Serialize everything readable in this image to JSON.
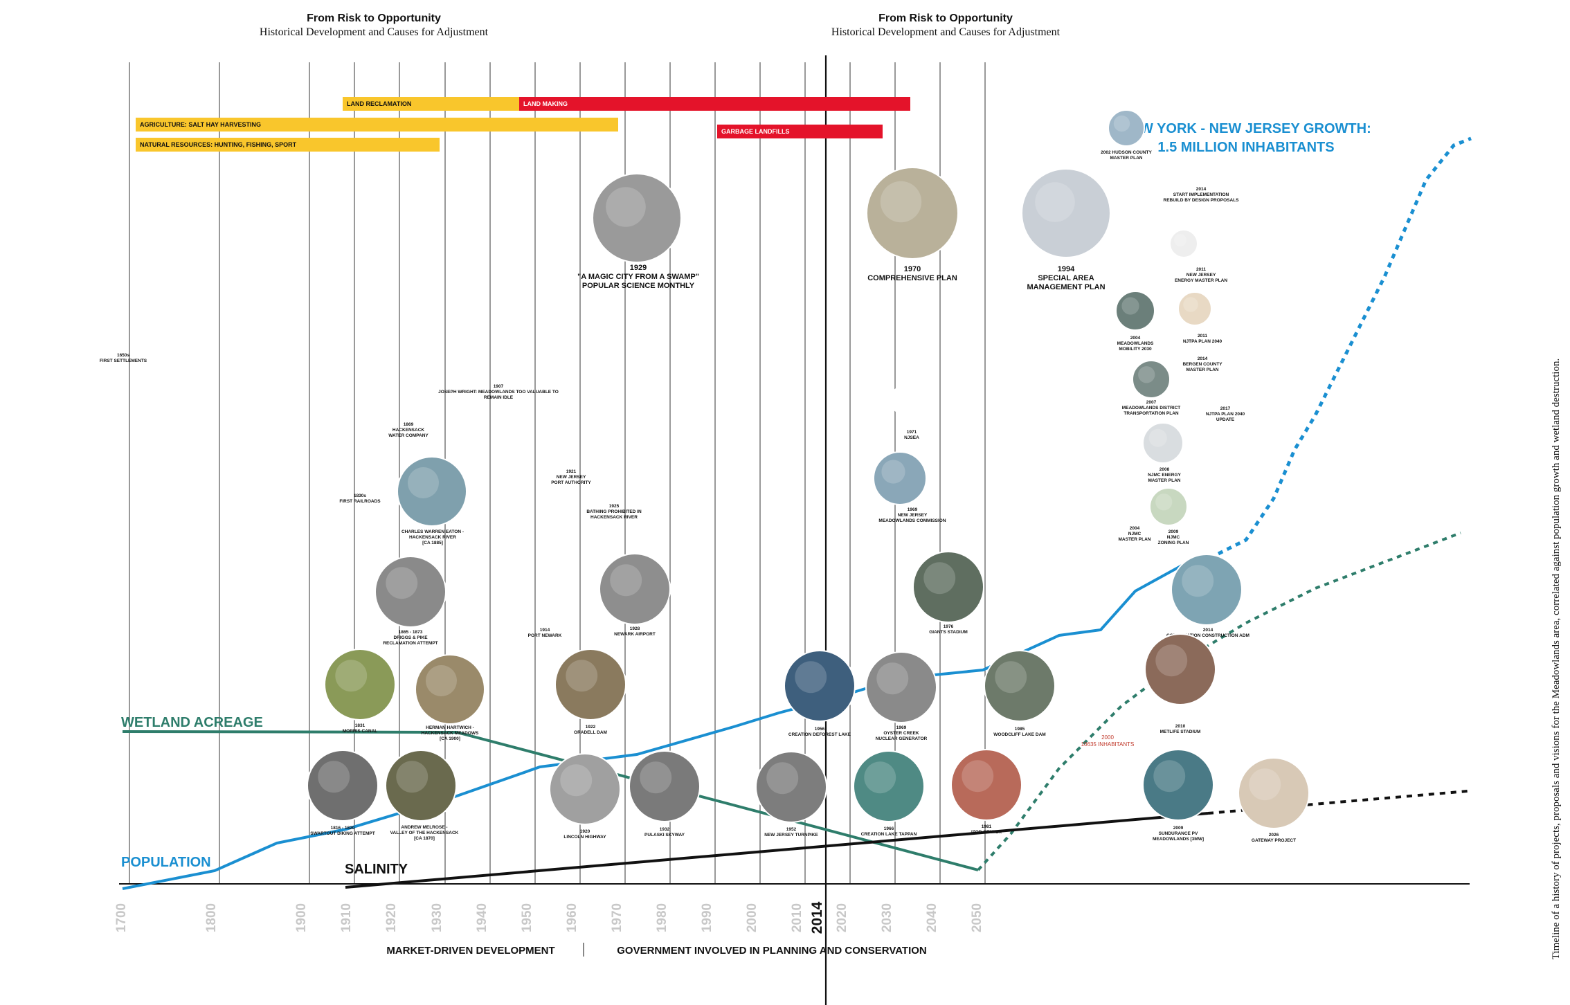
{
  "headers": [
    {
      "title": "From Risk to Opportunity",
      "subtitle": "Historical Development and Causes for Adjustment"
    },
    {
      "title": "From Risk to Opportunity",
      "subtitle": "Historical Development and Causes for Adjustment"
    }
  ],
  "side_caption": "Timeline of a history of projects, proposals and visions for the Meadowlands area, correlated against population growth and wetland destruction.",
  "eras": {
    "market": "MARKET-DRIVEN DEVELOPMENT",
    "government": "GOVERNMENT INVOLVED IN PLANNING AND CONSERVATION"
  },
  "axis_years": [
    1700,
    1800,
    1900,
    1910,
    1920,
    1930,
    1940,
    1950,
    1960,
    1970,
    1980,
    1990,
    2000,
    2010,
    2014,
    2020,
    2030,
    2040,
    2050
  ],
  "current_year": "2014",
  "bars": [
    {
      "label": "LAND RECLAMATION",
      "color": "#f9c62c"
    },
    {
      "label": "LAND MAKING",
      "color": "#e4132a"
    },
    {
      "label": "AGRICULTURE: SALT HAY HARVESTING",
      "color": "#f9c62c"
    },
    {
      "label": "GARBAGE LANDFILLS",
      "color": "#e4132a"
    },
    {
      "label": "NATURAL RESOURCES: HUNTING, FISHING, SPORT",
      "color": "#f9c62c"
    }
  ],
  "series_labels": {
    "wetland": "WETLAND ACREAGE",
    "population": "POPULATION",
    "salinity": "SALINITY",
    "growth_1": "NEW YORK - NEW JERSEY GROWTH:",
    "growth_2": "1.5 MILLION INHABITANTS",
    "inhabitants_1": "2000",
    "inhabitants_2": "10635 INHABITANTS"
  },
  "colors": {
    "population": "#1a8fd1",
    "wetland": "#2e7d6b",
    "salinity": "#111111",
    "growth_text": "#1a8fd1",
    "inhabitants": "#c0392b"
  },
  "events": [
    {
      "name": "first-settlements",
      "lines": [
        "1650s",
        "FIRST SETTLEMENTS"
      ]
    },
    {
      "name": "first-railroads",
      "lines": [
        "1830s",
        "FIRST RAILROADS"
      ]
    },
    {
      "name": "hackensack-water",
      "lines": [
        "1869",
        "HACKENSACK",
        "WATER COMPANY"
      ]
    },
    {
      "name": "joseph-wright",
      "lines": [
        "1907",
        "JOSEPH WRIGHT: MEADOWLANDS TOO VALUABLE TO",
        "REMAIN IDLE"
      ]
    },
    {
      "name": "magic-city",
      "lines": [
        "1929",
        "\"A MAGIC CITY FROM A SWAMP\"",
        "POPULAR SCIENCE MONTHLY"
      ]
    },
    {
      "name": "port-authority",
      "lines": [
        "1921",
        "NEW JERSEY",
        "PORT AUTHORITY"
      ]
    },
    {
      "name": "bathing-prohibited",
      "lines": [
        "1925",
        "BATHING PROHIBITED IN",
        "HACKENSACK RIVER"
      ]
    },
    {
      "name": "port-newark",
      "lines": [
        "1914",
        "PORT NEWARK"
      ]
    },
    {
      "name": "comprehensive-plan",
      "lines": [
        "1970",
        "COMPREHENSIVE PLAN"
      ]
    },
    {
      "name": "special-area",
      "lines": [
        "1994",
        "SPECIAL AREA",
        "MANAGEMENT PLAN"
      ]
    },
    {
      "name": "njsea",
      "lines": [
        "1971",
        "NJSEA"
      ]
    },
    {
      "name": "nj-meadowlands-commission",
      "lines": [
        "1969",
        "NEW JERSEY",
        "MEADOWLANDS COMMISSION"
      ]
    },
    {
      "name": "hudson-county",
      "lines": [
        "2002 HUDSON COUNTY",
        "MASTER PLAN"
      ]
    },
    {
      "name": "start-implementation",
      "lines": [
        "2014",
        "START IMPLEMENTATION",
        "REBUILD BY DESIGN PROPOSALS"
      ]
    },
    {
      "name": "nj-energy",
      "lines": [
        "2011",
        "NEW JERSEY",
        "ENERGY MASTER PLAN"
      ]
    },
    {
      "name": "nitpa-2040",
      "lines": [
        "2011",
        "NJTPA PLAN 2040"
      ]
    },
    {
      "name": "mobility-2030",
      "lines": [
        "2004",
        "MEADOWLANDS",
        "MOBILITY 2030"
      ]
    },
    {
      "name": "bergen-county",
      "lines": [
        "2014",
        "BERGEN COUNTY",
        "MASTER PLAN"
      ]
    },
    {
      "name": "transportation-plan",
      "lines": [
        "2007",
        "MEADOWLANDS DISTRICT",
        "TRANSPORTATION PLAN"
      ]
    },
    {
      "name": "nitpa-update",
      "lines": [
        "2017",
        "NJTPA PLAN 2040",
        "UPDATE"
      ]
    },
    {
      "name": "njmc-energy",
      "lines": [
        "2008",
        "NJMC ENERGY",
        "MASTER PLAN"
      ]
    },
    {
      "name": "njmc-master",
      "lines": [
        "2004",
        "NJMC",
        "MASTER PLAN"
      ]
    },
    {
      "name": "njmc-zoning",
      "lines": [
        "2009",
        "NJMC",
        "ZONING PLAN"
      ]
    },
    {
      "name": "eaton",
      "lines": [
        "CHARLES WARREN EATON -",
        "HACKENSACK RIVER",
        "[CA 1885]"
      ]
    },
    {
      "name": "driggs",
      "lines": [
        "1865 - 1873",
        "DRIGGS & PIKE",
        "RECLAMATION ATTEMPT"
      ]
    },
    {
      "name": "newark-airport",
      "lines": [
        "1928",
        "NEWARK AIRPORT"
      ]
    },
    {
      "name": "giants-stadium",
      "lines": [
        "1976",
        "GIANTS STADIUM"
      ]
    },
    {
      "name": "continuation",
      "lines": [
        "2014",
        "CONTINUATION CONSTRUCTION ADM"
      ]
    },
    {
      "name": "morris-canal",
      "lines": [
        "1831",
        "MORRIS CANAL"
      ]
    },
    {
      "name": "hartwich",
      "lines": [
        "HERMAN HARTWICH -",
        "HACKENSACK MEADOWS",
        "[CA 1900]"
      ]
    },
    {
      "name": "oradell",
      "lines": [
        "1922",
        "ORADELL DAM"
      ]
    },
    {
      "name": "deforest",
      "lines": [
        "1956",
        "CREATION DEFOREST LAKE"
      ]
    },
    {
      "name": "oyster-creek",
      "lines": [
        "1969",
        "OYSTER CREEK",
        "NUCLEAR GENERATOR"
      ]
    },
    {
      "name": "woodcliff",
      "lines": [
        "1985",
        "WOODCLIFF LAKE DAM"
      ]
    },
    {
      "name": "metlife",
      "lines": [
        "2010",
        "METLIFE STADIUM"
      ]
    },
    {
      "name": "diking",
      "lines": [
        "1816 - 1820",
        "SWARTOUT DIKING ATTEMPT"
      ]
    },
    {
      "name": "melrose",
      "lines": [
        "ANDREW MELROSE -",
        "VALLEY OF THE HACKENSACK",
        "[CA 1870]"
      ]
    },
    {
      "name": "lincoln",
      "lines": [
        "1920",
        "LINCOLN HIGHWAY"
      ]
    },
    {
      "name": "pulaski",
      "lines": [
        "1932",
        "PULASKI SKYWAY"
      ]
    },
    {
      "name": "turnpike",
      "lines": [
        "1952",
        "NEW JERSEY TURNPIKE"
      ]
    },
    {
      "name": "lake-tappan",
      "lines": [
        "1966",
        "CREATION LAKE TAPPAN"
      ]
    },
    {
      "name": "izod",
      "lines": [
        "1981",
        "IZOD CENTER"
      ]
    },
    {
      "name": "sundurance",
      "lines": [
        "2009",
        "SUNDURANCE PV",
        "MEADOWLANDS [3MW]"
      ]
    },
    {
      "name": "gateway",
      "lines": [
        "2026",
        "GATEWAY PROJECT"
      ]
    }
  ]
}
